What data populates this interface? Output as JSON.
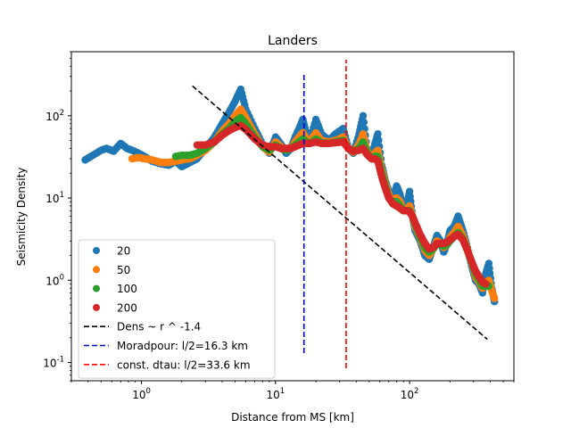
{
  "chart_data": {
    "type": "scatter",
    "title": "Landers",
    "xlabel": "Distance from MS [km]",
    "ylabel": "Seismicity Density",
    "xscale": "log",
    "yscale": "log",
    "xlim": [
      0.3,
      600
    ],
    "ylim": [
      0.06,
      600
    ],
    "x_ticks": [
      1,
      10,
      100
    ],
    "y_ticks": [
      0.1,
      1,
      10,
      100
    ],
    "x_tick_labels": [
      "10^0",
      "10^1",
      "10^2"
    ],
    "y_tick_labels": [
      "10^-1",
      "10^0",
      "10^1",
      "10^2"
    ],
    "grid": false,
    "legend_position": "lower-left",
    "series": [
      {
        "name": "20",
        "color": "#1f77b4",
        "marker": "circle",
        "points": [
          [
            0.38,
            29
          ],
          [
            0.42,
            32
          ],
          [
            0.5,
            38
          ],
          [
            0.55,
            40
          ],
          [
            0.62,
            37
          ],
          [
            0.7,
            46
          ],
          [
            0.78,
            40
          ],
          [
            0.85,
            38
          ],
          [
            0.95,
            35
          ],
          [
            1.05,
            32
          ],
          [
            1.2,
            28
          ],
          [
            1.4,
            26
          ],
          [
            1.6,
            25
          ],
          [
            1.8,
            28
          ],
          [
            2.0,
            24
          ],
          [
            2.3,
            27
          ],
          [
            2.6,
            30
          ],
          [
            3.0,
            40
          ],
          [
            3.5,
            55
          ],
          [
            4.0,
            80
          ],
          [
            4.5,
            110
          ],
          [
            5.0,
            150
          ],
          [
            5.5,
            210
          ],
          [
            6.0,
            120
          ],
          [
            7.0,
            70
          ],
          [
            8.0,
            45
          ],
          [
            9.0,
            35
          ],
          [
            10,
            55
          ],
          [
            11,
            45
          ],
          [
            12,
            35
          ],
          [
            13,
            40
          ],
          [
            14,
            55
          ],
          [
            15,
            70
          ],
          [
            16,
            90
          ],
          [
            17,
            60
          ],
          [
            18,
            50
          ],
          [
            20,
            90
          ],
          [
            22,
            60
          ],
          [
            25,
            50
          ],
          [
            28,
            60
          ],
          [
            32,
            70
          ],
          [
            35,
            40
          ],
          [
            38,
            35
          ],
          [
            42,
            60
          ],
          [
            45,
            100
          ],
          [
            48,
            40
          ],
          [
            52,
            30
          ],
          [
            55,
            45
          ],
          [
            58,
            60
          ],
          [
            62,
            25
          ],
          [
            66,
            16
          ],
          [
            70,
            12
          ],
          [
            75,
            10
          ],
          [
            80,
            14
          ],
          [
            85,
            11
          ],
          [
            90,
            7
          ],
          [
            95,
            8
          ],
          [
            100,
            12
          ],
          [
            105,
            6
          ],
          [
            110,
            4
          ],
          [
            120,
            3
          ],
          [
            130,
            2
          ],
          [
            140,
            1.8
          ],
          [
            150,
            2.5
          ],
          [
            160,
            3.5
          ],
          [
            170,
            3
          ],
          [
            180,
            2.2
          ],
          [
            190,
            2.8
          ],
          [
            200,
            4
          ],
          [
            215,
            4.5
          ],
          [
            230,
            6
          ],
          [
            250,
            4
          ],
          [
            270,
            2.5
          ],
          [
            290,
            1.5
          ],
          [
            310,
            1.0
          ],
          [
            330,
            0.9
          ],
          [
            350,
            0.7
          ],
          [
            370,
            1.2
          ],
          [
            390,
            1.6
          ],
          [
            410,
            0.8
          ],
          [
            430,
            0.55
          ]
        ]
      },
      {
        "name": "50",
        "color": "#ff7f0e",
        "marker": "circle",
        "points": [
          [
            0.85,
            30
          ],
          [
            0.95,
            31
          ],
          [
            1.05,
            30
          ],
          [
            1.2,
            29
          ],
          [
            1.4,
            27
          ],
          [
            1.6,
            27
          ],
          [
            1.8,
            28
          ],
          [
            2.0,
            29
          ],
          [
            2.3,
            30
          ],
          [
            2.6,
            33
          ],
          [
            3.0,
            38
          ],
          [
            3.5,
            48
          ],
          [
            4.0,
            65
          ],
          [
            4.5,
            80
          ],
          [
            5.0,
            100
          ],
          [
            5.5,
            120
          ],
          [
            6.0,
            95
          ],
          [
            7.0,
            60
          ],
          [
            8.0,
            42
          ],
          [
            9.0,
            36
          ],
          [
            10,
            48
          ],
          [
            11,
            42
          ],
          [
            12,
            38
          ],
          [
            13,
            40
          ],
          [
            14,
            48
          ],
          [
            15,
            55
          ],
          [
            16,
            62
          ],
          [
            17,
            52
          ],
          [
            18,
            48
          ],
          [
            20,
            62
          ],
          [
            22,
            50
          ],
          [
            25,
            48
          ],
          [
            28,
            50
          ],
          [
            32,
            55
          ],
          [
            35,
            40
          ],
          [
            38,
            36
          ],
          [
            42,
            45
          ],
          [
            45,
            60
          ],
          [
            48,
            38
          ],
          [
            52,
            30
          ],
          [
            55,
            35
          ],
          [
            58,
            38
          ],
          [
            62,
            22
          ],
          [
            66,
            15
          ],
          [
            70,
            11
          ],
          [
            75,
            9
          ],
          [
            80,
            10
          ],
          [
            85,
            9
          ],
          [
            90,
            7
          ],
          [
            95,
            7
          ],
          [
            100,
            8
          ],
          [
            105,
            6
          ],
          [
            110,
            4.5
          ],
          [
            120,
            3.2
          ],
          [
            130,
            2.3
          ],
          [
            140,
            2.0
          ],
          [
            150,
            2.4
          ],
          [
            160,
            3
          ],
          [
            170,
            2.8
          ],
          [
            180,
            2.5
          ],
          [
            190,
            2.7
          ],
          [
            200,
            3.3
          ],
          [
            215,
            3.8
          ],
          [
            230,
            4.5
          ],
          [
            250,
            3.5
          ],
          [
            270,
            2.4
          ],
          [
            290,
            1.6
          ],
          [
            310,
            1.1
          ],
          [
            330,
            0.95
          ],
          [
            350,
            0.8
          ],
          [
            370,
            0.9
          ],
          [
            390,
            1.0
          ],
          [
            410,
            0.75
          ],
          [
            430,
            0.6
          ]
        ]
      },
      {
        "name": "100",
        "color": "#2ca02c",
        "marker": "circle",
        "points": [
          [
            1.8,
            32
          ],
          [
            2.0,
            33
          ],
          [
            2.3,
            33
          ],
          [
            2.6,
            35
          ],
          [
            3.0,
            40
          ],
          [
            3.5,
            48
          ],
          [
            4.0,
            60
          ],
          [
            4.5,
            70
          ],
          [
            5.0,
            85
          ],
          [
            5.5,
            95
          ],
          [
            6.0,
            80
          ],
          [
            7.0,
            55
          ],
          [
            8.0,
            42
          ],
          [
            9.0,
            38
          ],
          [
            10,
            44
          ],
          [
            11,
            40
          ],
          [
            12,
            38
          ],
          [
            13,
            40
          ],
          [
            14,
            44
          ],
          [
            15,
            48
          ],
          [
            16,
            52
          ],
          [
            17,
            48
          ],
          [
            18,
            46
          ],
          [
            20,
            52
          ],
          [
            22,
            47
          ],
          [
            25,
            46
          ],
          [
            28,
            48
          ],
          [
            32,
            50
          ],
          [
            35,
            40
          ],
          [
            38,
            37
          ],
          [
            42,
            40
          ],
          [
            45,
            48
          ],
          [
            48,
            36
          ],
          [
            52,
            30
          ],
          [
            55,
            32
          ],
          [
            58,
            32
          ],
          [
            62,
            20
          ],
          [
            66,
            14
          ],
          [
            70,
            10
          ],
          [
            75,
            9
          ],
          [
            80,
            9
          ],
          [
            85,
            8
          ],
          [
            90,
            7
          ],
          [
            95,
            7
          ],
          [
            100,
            7
          ],
          [
            105,
            6
          ],
          [
            110,
            4.8
          ],
          [
            120,
            3.3
          ],
          [
            130,
            2.5
          ],
          [
            140,
            2.2
          ],
          [
            150,
            2.4
          ],
          [
            160,
            2.8
          ],
          [
            170,
            2.7
          ],
          [
            180,
            2.6
          ],
          [
            190,
            2.7
          ],
          [
            200,
            3.0
          ],
          [
            215,
            3.4
          ],
          [
            230,
            3.8
          ],
          [
            250,
            3.2
          ],
          [
            270,
            2.3
          ],
          [
            290,
            1.6
          ],
          [
            310,
            1.2
          ],
          [
            330,
            1.0
          ],
          [
            350,
            0.85
          ],
          [
            370,
            0.85
          ],
          [
            390,
            0.85
          ]
        ]
      },
      {
        "name": "200",
        "color": "#d62728",
        "marker": "circle",
        "points": [
          [
            2.6,
            44
          ],
          [
            3.0,
            44
          ],
          [
            3.5,
            48
          ],
          [
            4.0,
            58
          ],
          [
            4.5,
            66
          ],
          [
            5.0,
            72
          ],
          [
            5.5,
            76
          ],
          [
            6.0,
            68
          ],
          [
            7.0,
            52
          ],
          [
            8.0,
            44
          ],
          [
            9.0,
            42
          ],
          [
            10,
            42
          ],
          [
            11,
            40
          ],
          [
            12,
            40
          ],
          [
            13,
            40
          ],
          [
            14,
            42
          ],
          [
            15,
            44
          ],
          [
            16,
            46
          ],
          [
            17,
            46
          ],
          [
            18,
            46
          ],
          [
            20,
            48
          ],
          [
            22,
            46
          ],
          [
            25,
            46
          ],
          [
            28,
            47
          ],
          [
            32,
            48
          ],
          [
            35,
            40
          ],
          [
            38,
            37
          ],
          [
            42,
            38
          ],
          [
            45,
            40
          ],
          [
            48,
            34
          ],
          [
            52,
            30
          ],
          [
            55,
            30
          ],
          [
            58,
            28
          ],
          [
            62,
            18
          ],
          [
            66,
            13
          ],
          [
            70,
            10
          ],
          [
            75,
            8.5
          ],
          [
            80,
            8
          ],
          [
            85,
            7.5
          ],
          [
            90,
            7
          ],
          [
            95,
            7
          ],
          [
            100,
            6.8
          ],
          [
            105,
            6
          ],
          [
            110,
            5
          ],
          [
            120,
            3.6
          ],
          [
            130,
            2.8
          ],
          [
            140,
            2.4
          ],
          [
            150,
            2.5
          ],
          [
            160,
            2.8
          ],
          [
            170,
            2.8
          ],
          [
            180,
            2.8
          ],
          [
            190,
            2.9
          ],
          [
            200,
            3.1
          ],
          [
            215,
            3.4
          ],
          [
            230,
            3.6
          ],
          [
            250,
            3.1
          ],
          [
            270,
            2.3
          ],
          [
            290,
            1.7
          ],
          [
            310,
            1.3
          ],
          [
            330,
            1.1
          ],
          [
            350,
            0.95
          ],
          [
            370,
            0.9
          ]
        ]
      }
    ],
    "fit_line": {
      "name": "Dens ~ r ^ -1.4",
      "color": "#000000",
      "style": "dashed",
      "exponent": -1.4,
      "x_start": 2.4,
      "x_end": 380,
      "y_start": 230
    },
    "vlines": [
      {
        "name": "Moradpour: l/2=16.3 km",
        "color": "#0000cc",
        "style": "dashed",
        "x": 16.3,
        "y_range": [
          0.13,
          320
        ]
      },
      {
        "name": "const. dtau: l/2=33.6 km",
        "color": "#ff0000",
        "style": "dashed",
        "x": 33.6,
        "y_range": [
          0.085,
          480
        ]
      }
    ],
    "legend": [
      {
        "label": "20",
        "kind": "dot",
        "color": "#1f77b4"
      },
      {
        "label": "50",
        "kind": "dot",
        "color": "#ff7f0e"
      },
      {
        "label": "100",
        "kind": "dot",
        "color": "#2ca02c"
      },
      {
        "label": "200",
        "kind": "dot",
        "color": "#d62728"
      },
      {
        "label": "Dens ~ r ^ -1.4",
        "kind": "dash",
        "color": "#000000"
      },
      {
        "label": "Moradpour: l/2=16.3 km",
        "kind": "dash",
        "color": "#0000cc"
      },
      {
        "label": "const. dtau: l/2=33.6 km",
        "kind": "dash",
        "color": "#ff0000"
      }
    ]
  }
}
